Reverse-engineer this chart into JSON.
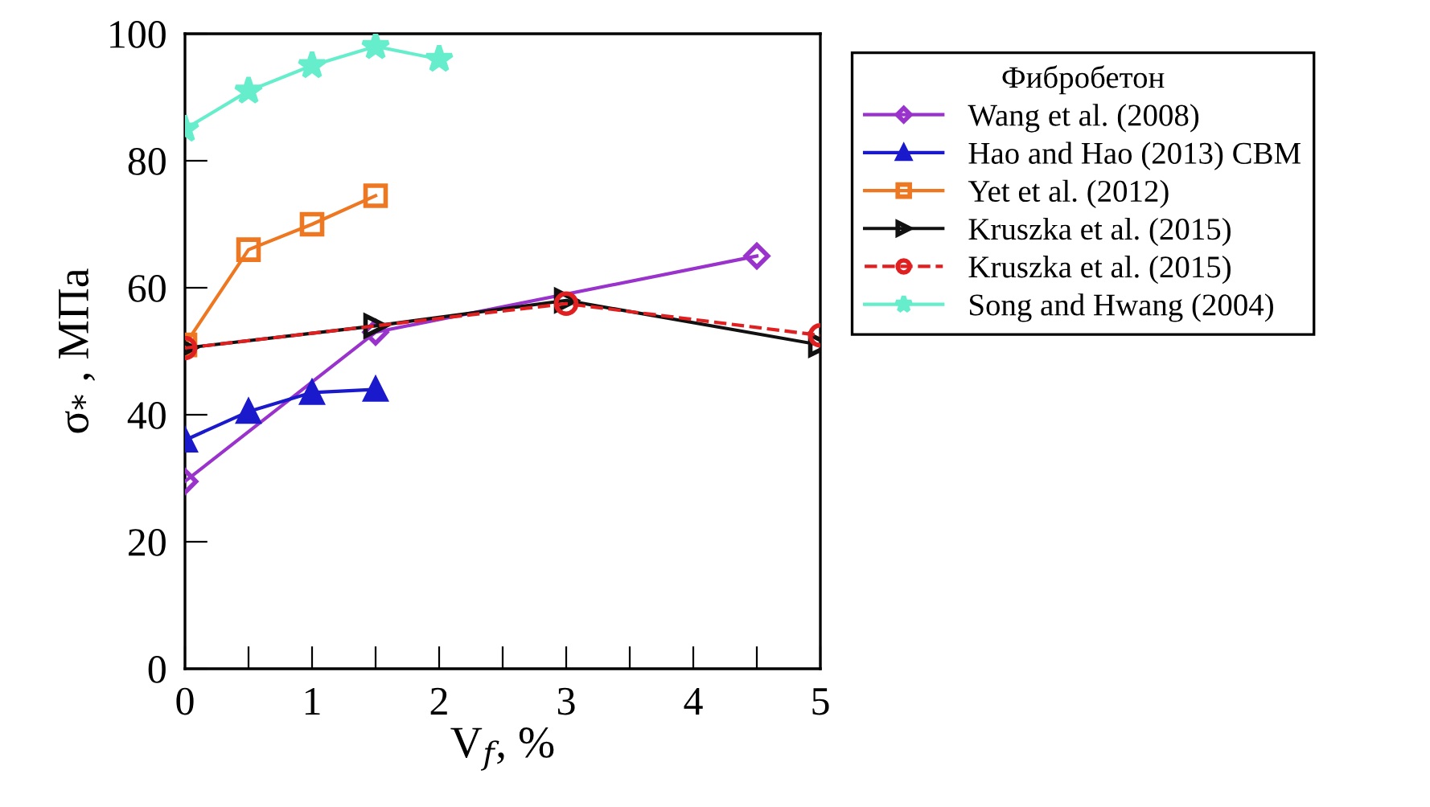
{
  "chart_data": {
    "type": "line",
    "xlabel": "V$_{f}$, %",
    "ylabel": "σ$_{*}$ , МПа",
    "legend_title": "Фибробетон",
    "legend": "right",
    "grid": false,
    "xlim": [
      0,
      5
    ],
    "ylim": [
      0,
      100
    ],
    "xticks": [
      0,
      {
        "value": 0.5,
        "label": null
      },
      1,
      {
        "value": 1.5,
        "label": null
      },
      2,
      {
        "value": 2.5,
        "label": null
      },
      3,
      {
        "value": 3.5,
        "label": null
      },
      4,
      {
        "value": 4.5,
        "label": null
      },
      5
    ],
    "yticks": [
      0,
      20,
      40,
      60,
      80,
      100
    ],
    "series": [
      {
        "name": "Wang et al. (2008)",
        "color": "#9933cc",
        "marker": "diamond",
        "line_style": "solid",
        "x": [
          0,
          1.5,
          4.5
        ],
        "values": [
          29.5,
          53,
          65
        ]
      },
      {
        "name": "Hao and Hao (2013) CBM",
        "color": "#1a1acc",
        "marker": "triangle",
        "line_style": "solid",
        "x": [
          0,
          0.5,
          1,
          1.5
        ],
        "values": [
          36,
          40.5,
          43.5,
          44
        ]
      },
      {
        "name": "Yet et al. (2012)",
        "color": "#ee7722",
        "marker": "square",
        "line_style": "solid",
        "x": [
          0,
          0.5,
          1,
          1.5
        ],
        "values": [
          51,
          66,
          70,
          74.5
        ]
      },
      {
        "name": "Kruszka et al. (2015)",
        "color": "#111111",
        "marker": "triangle_right",
        "line_style": "solid",
        "x": [
          0,
          1.5,
          3,
          5
        ],
        "values": [
          50.5,
          54,
          58,
          51
        ]
      },
      {
        "name": "Kruszka et al. (2015)",
        "color": "#e02020",
        "marker": "circle",
        "line_style": "dashed",
        "x": [
          0,
          3,
          5
        ],
        "values": [
          50.5,
          57.5,
          52.5
        ]
      },
      {
        "name": "Song and Hwang (2004)",
        "color": "#66eecc",
        "marker": "star",
        "line_style": "solid",
        "x": [
          0,
          0.5,
          1,
          1.5,
          2
        ],
        "values": [
          85,
          91,
          95,
          98,
          96
        ]
      }
    ]
  }
}
